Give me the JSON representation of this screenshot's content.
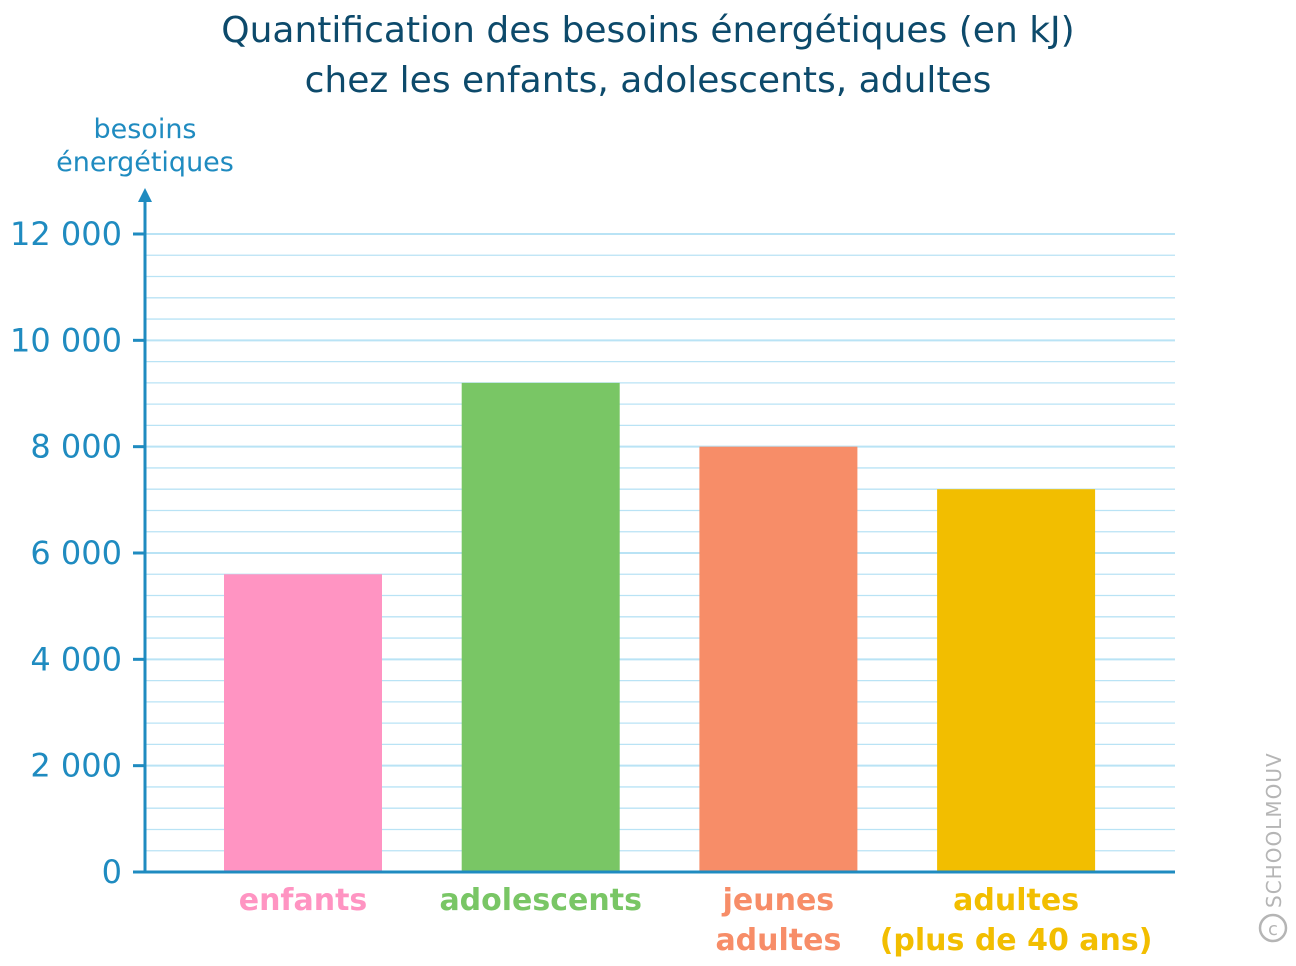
{
  "watermark": "SCHOOLMOUV",
  "chart_data": {
    "type": "bar",
    "title": [
      "Quantification des besoins énergétiques (en kJ)",
      "chez les enfants, adolescents, adultes"
    ],
    "ylabel": [
      "besoins",
      "énergétiques"
    ],
    "xlabel": "",
    "categories": [
      [
        "enfants"
      ],
      [
        "adolescents"
      ],
      [
        "jeunes",
        "adultes"
      ],
      [
        "adultes",
        "(plus de 40 ans)"
      ]
    ],
    "values": [
      5600,
      9200,
      8000,
      7200
    ],
    "colors": [
      "#ff94c2",
      "#79c665",
      "#f78d68",
      "#f2be00"
    ],
    "label_colors": [
      "#ff94c2",
      "#79c665",
      "#f78d68",
      "#f2be00"
    ],
    "ylim": [
      0,
      12000
    ],
    "yticks": [
      0,
      2000,
      4000,
      6000,
      8000,
      10000,
      12000
    ],
    "ytick_labels": [
      "0",
      "2 000",
      "4 000",
      "6 000",
      "8 000",
      "10 000",
      "12 000"
    ],
    "minor_step": 400,
    "grid": true,
    "axis_color": "#1f8bc0",
    "grid_color": "#b9e3f5"
  }
}
